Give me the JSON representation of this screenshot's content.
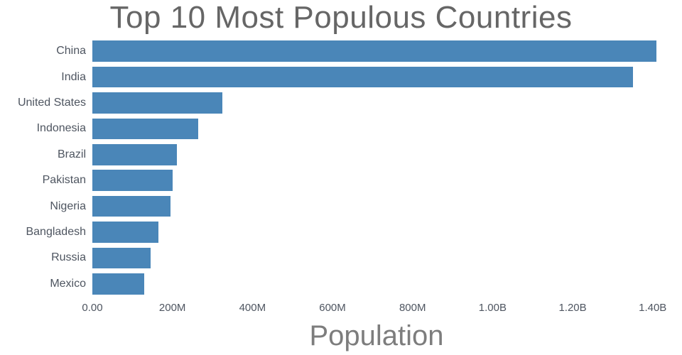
{
  "chart_data": {
    "type": "bar",
    "orientation": "horizontal",
    "title": "Top 10 Most Populous Countries",
    "xlabel": "Population",
    "ylabel": "",
    "categories": [
      "China",
      "India",
      "United States",
      "Indonesia",
      "Brazil",
      "Pakistan",
      "Nigeria",
      "Bangladesh",
      "Russia",
      "Mexico"
    ],
    "values": [
      1410000000,
      1350000000,
      325000000,
      264000000,
      211000000,
      200000000,
      195000000,
      165000000,
      145000000,
      130000000
    ],
    "xlim": [
      0,
      1420000000
    ],
    "x_tick_values": [
      0,
      200000000,
      400000000,
      600000000,
      800000000,
      1000000000,
      1200000000,
      1400000000
    ],
    "x_ticks": [
      "0.00",
      "200M",
      "400M",
      "600M",
      "800M",
      "1.00B",
      "1.20B",
      "1.40B"
    ],
    "bar_color": "#4a86b8",
    "grid": false,
    "legend": "none",
    "background": "#ffffff"
  }
}
